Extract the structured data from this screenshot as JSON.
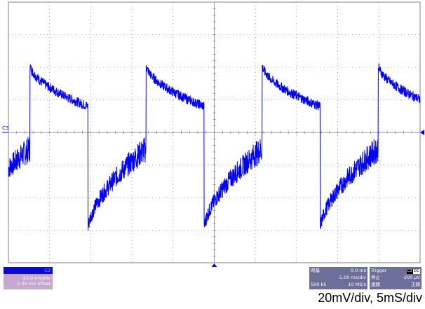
{
  "header": {
    "partial_title": ""
  },
  "channel": {
    "marker": "C3",
    "box_badge": "C3",
    "scale": "20.0 mV/div",
    "offset": "0.00 mV offset",
    "color": "#0000ff"
  },
  "timebase": {
    "title": "時基",
    "delay": "0.0 ms",
    "time_per_div": "5.00 ms/div",
    "samples": "500 kS",
    "sample_rate": "10 MS/s"
  },
  "trigger": {
    "title": "Trigger",
    "source": "C3",
    "coupling": "DC",
    "mode": "停止",
    "level": "-200 μV",
    "type": "邊緣",
    "slope": "正緣"
  },
  "caption": "20mV/div, 5mS/div",
  "chart_data": {
    "type": "line",
    "title": "",
    "xlabel": "",
    "ylabel": "",
    "x_divisions": 10,
    "y_divisions": 8,
    "xlim": [
      -25,
      25
    ],
    "ylim": [
      -80,
      80
    ],
    "x_unit": "ms",
    "y_unit": "mV",
    "grid": true,
    "series": [
      {
        "color": "#0000ff",
        "period_ms": 14.1,
        "phase_ms": -22.4,
        "high_start_mv": 42,
        "high_end_mv": 16,
        "low_start_mv": -60,
        "low_end_mv": -10,
        "noise_mv_high": 3,
        "noise_mv_low": 7
      }
    ]
  }
}
